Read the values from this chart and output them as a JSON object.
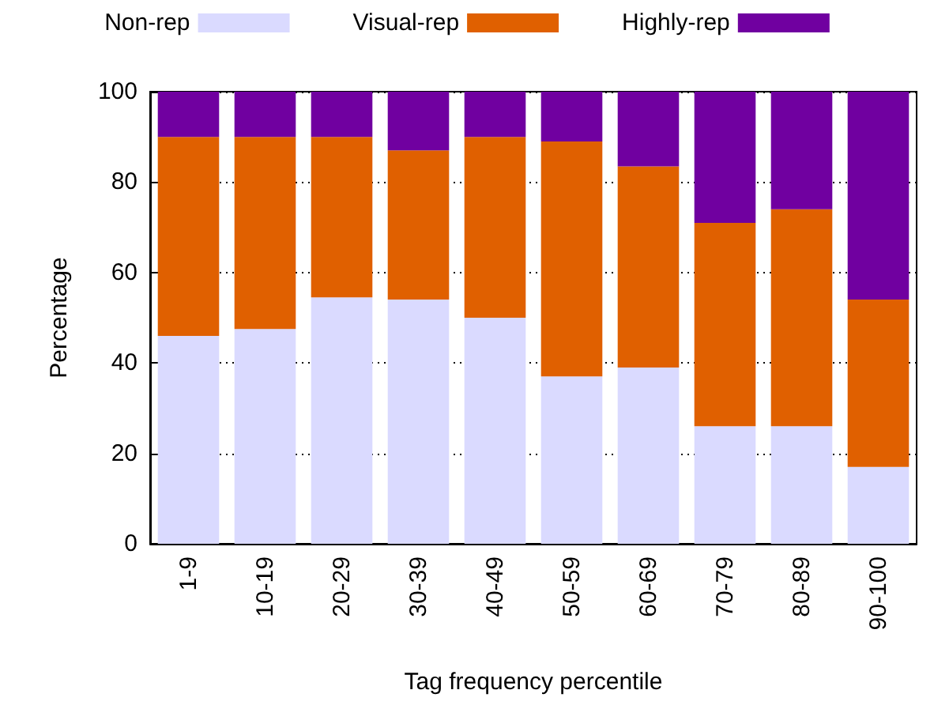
{
  "chart_data": {
    "type": "bar",
    "stacked": true,
    "xlabel": "Tag frequency percentile",
    "ylabel": "Percentage",
    "categories": [
      "1-9",
      "10-19",
      "20-29",
      "30-39",
      "40-49",
      "50-59",
      "60-69",
      "70-79",
      "80-89",
      "90-100"
    ],
    "series": [
      {
        "name": "Non-rep",
        "color": "#dadaff",
        "values": [
          46,
          47.5,
          54.5,
          54,
          50,
          37,
          39,
          26,
          26,
          17
        ]
      },
      {
        "name": "Visual-rep",
        "color": "#e06000",
        "values": [
          44,
          42.5,
          35.5,
          33,
          40,
          52,
          44.5,
          45,
          48,
          37
        ]
      },
      {
        "name": "Highly-rep",
        "color": "#7000a0",
        "values": [
          10,
          10,
          10,
          13,
          10,
          11,
          16.5,
          29,
          26,
          46
        ]
      }
    ],
    "ylim": [
      0,
      100
    ],
    "yticks": [
      0,
      20,
      40,
      60,
      80,
      100
    ],
    "grid": "y",
    "legend": "top"
  }
}
